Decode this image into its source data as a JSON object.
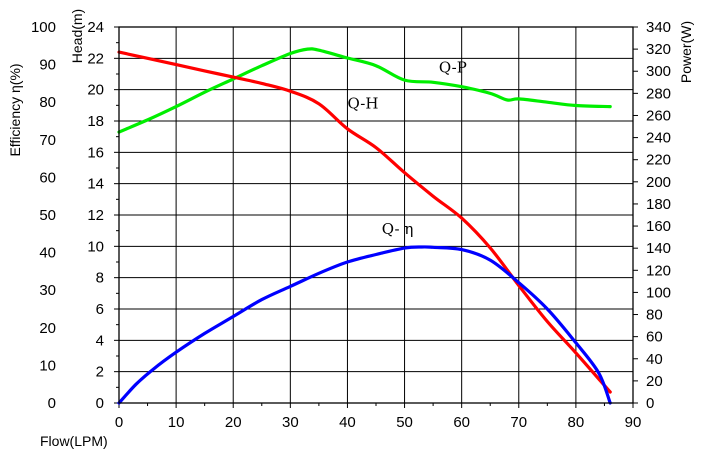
{
  "chart_data": {
    "type": "line",
    "title": "",
    "xlabel": "Flow(LPM)",
    "ylabel_left_outer": "Efficiency η(%)",
    "ylabel_left_inner": "Head(m)",
    "ylabel_right": "Power(W)",
    "x_axis": {
      "range": [
        0,
        90
      ],
      "ticks": [
        0,
        10,
        20,
        30,
        40,
        50,
        60,
        70,
        80,
        90
      ]
    },
    "efficiency_axis": {
      "range": [
        0,
        100
      ],
      "ticks": [
        0,
        10,
        20,
        30,
        40,
        50,
        60,
        70,
        80,
        90,
        100
      ]
    },
    "head_axis": {
      "range": [
        0,
        24
      ],
      "ticks": [
        0,
        2,
        4,
        6,
        8,
        10,
        12,
        14,
        16,
        18,
        20,
        22,
        24
      ]
    },
    "power_axis": {
      "range": [
        0,
        340
      ],
      "ticks": [
        0,
        20,
        40,
        60,
        80,
        100,
        120,
        140,
        160,
        180,
        200,
        220,
        240,
        260,
        280,
        300,
        320,
        340
      ]
    },
    "grid": true,
    "series": [
      {
        "name": "Q-P",
        "axis": "power",
        "color": "#00ee00",
        "x": [
          0,
          5,
          10,
          15,
          20,
          25,
          30,
          33,
          35,
          40,
          45,
          50,
          55,
          60,
          65,
          68,
          70,
          75,
          80,
          86
        ],
        "y": [
          245,
          256,
          268,
          281,
          293,
          305,
          316,
          320,
          319,
          312,
          305,
          292,
          290,
          286,
          280,
          274,
          275,
          272,
          269,
          268
        ]
      },
      {
        "name": "Q-H",
        "axis": "head",
        "color": "#ff0000",
        "x": [
          0,
          5,
          10,
          15,
          20,
          25,
          30,
          35,
          40,
          45,
          50,
          55,
          60,
          65,
          70,
          75,
          80,
          86
        ],
        "y": [
          22.4,
          22.0,
          21.6,
          21.2,
          20.8,
          20.4,
          19.9,
          19.1,
          17.5,
          16.3,
          14.7,
          13.2,
          11.8,
          9.9,
          7.5,
          5.2,
          3.2,
          0.7
        ]
      },
      {
        "name": "Q- η",
        "axis": "efficiency",
        "color": "#0000ff",
        "x": [
          0,
          3,
          6,
          10,
          15,
          20,
          25,
          30,
          35,
          40,
          45,
          50,
          53,
          55,
          60,
          65,
          70,
          75,
          80,
          84,
          86
        ],
        "y": [
          0,
          5,
          9,
          13.5,
          18.5,
          23,
          27.5,
          31,
          34.5,
          37.5,
          39.5,
          41.2,
          41.5,
          41.4,
          40.8,
          38,
          32,
          25,
          16,
          8,
          0
        ]
      }
    ],
    "annotations": [
      {
        "text": "Q-P",
        "x": 56,
        "y_head": 21.1
      },
      {
        "text": "Q-H",
        "x": 40,
        "y_head": 18.8
      },
      {
        "text": "Q- η",
        "x": 46,
        "y_head": 10.8
      }
    ]
  }
}
